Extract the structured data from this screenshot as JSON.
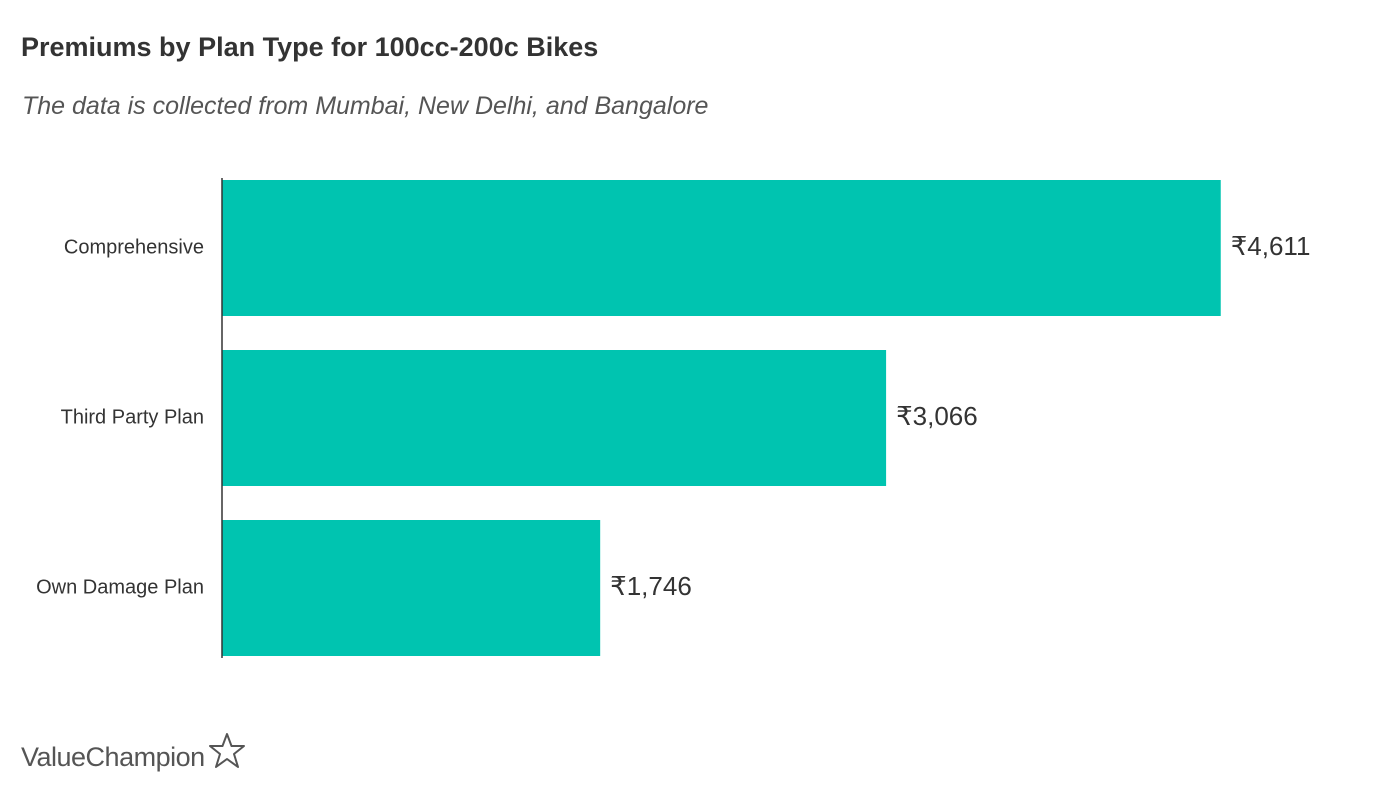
{
  "title": "Premiums by Plan Type for 100cc-200c Bikes",
  "subtitle": "The data is collected from Mumbai, New Delhi, and Bangalore",
  "brand": {
    "name": "ValueChampion",
    "icon": "star-outline-icon"
  },
  "colors": {
    "bar": "#00C4B0",
    "axis": "#333333",
    "text": "#333333"
  },
  "chart_data": {
    "type": "bar",
    "orientation": "horizontal",
    "categories": [
      "Comprehensive",
      "Third Party Plan",
      "Own Damage Plan"
    ],
    "values": [
      4611,
      3066,
      1746
    ],
    "value_labels": [
      "₹4,611",
      "₹3,066",
      "₹1,746"
    ],
    "title": "Premiums by Plan Type for 100cc-200c Bikes",
    "subtitle": "The data is collected from Mumbai, New Delhi, and Bangalore",
    "xlabel": "",
    "ylabel": "",
    "xlim": [
      0,
      5000
    ],
    "grid": false,
    "legend": "none"
  }
}
